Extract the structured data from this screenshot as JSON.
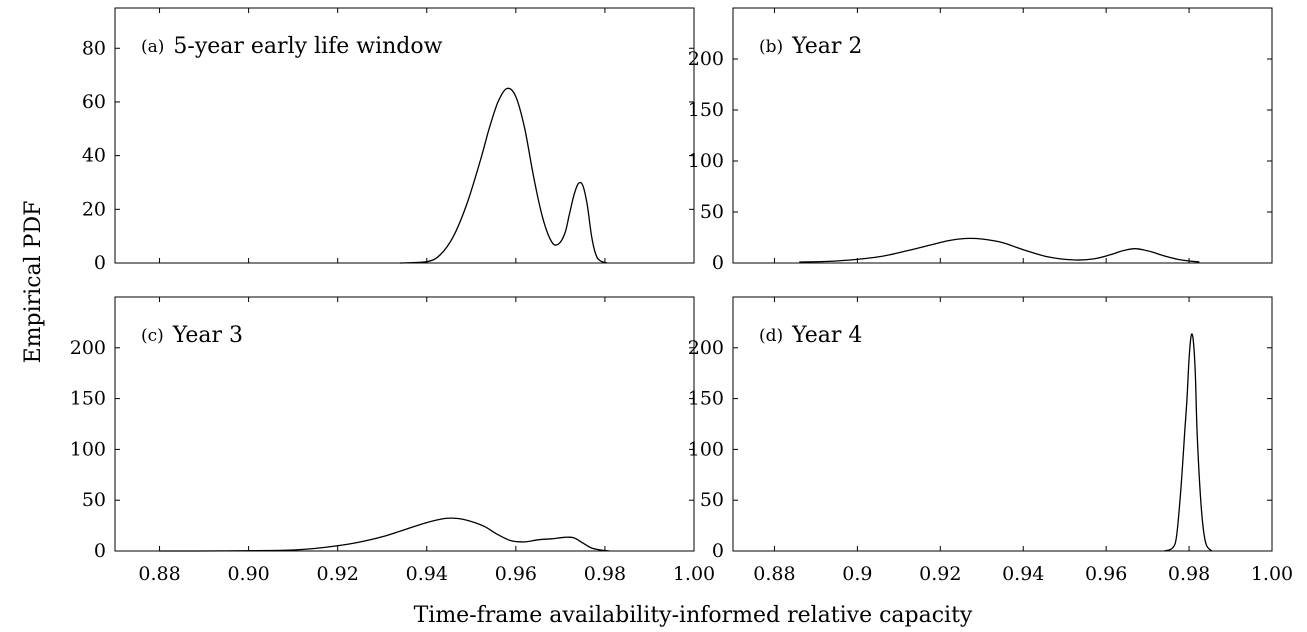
{
  "figure": {
    "ylabel": "Empirical PDF",
    "xlabel": "Time-frame availability-informed relative capacity"
  },
  "chart_data": [
    {
      "type": "line",
      "panel_tag": "(a)",
      "title": "5-year early life window",
      "xlim": [
        0.87,
        1.0
      ],
      "ylim": [
        0,
        95
      ],
      "xticks": [],
      "yticks": [
        0,
        20,
        40,
        60,
        80
      ],
      "series": [
        {
          "x": [
            0.934,
            0.94,
            0.943,
            0.946,
            0.949,
            0.952,
            0.954,
            0.956,
            0.958,
            0.96,
            0.962,
            0.964,
            0.966,
            0.968,
            0.9695,
            0.971,
            0.972,
            0.973,
            0.974,
            0.975,
            0.976,
            0.977,
            0.978,
            0.979,
            0.9805
          ],
          "y": [
            0,
            0.5,
            3,
            10,
            22,
            38,
            50,
            60,
            65,
            62,
            50,
            32,
            17,
            8,
            7,
            11,
            18,
            25,
            29.5,
            29,
            22,
            10,
            3,
            0.8,
            0
          ]
        }
      ]
    },
    {
      "type": "line",
      "panel_tag": "(b)",
      "title": "Year 2",
      "xlim": [
        0.87,
        1.0
      ],
      "ylim": [
        0,
        250
      ],
      "xticks": [],
      "yticks": [
        0,
        50,
        100,
        150,
        200
      ],
      "series": [
        {
          "x": [
            0.886,
            0.895,
            0.905,
            0.912,
            0.918,
            0.922,
            0.926,
            0.93,
            0.935,
            0.94,
            0.946,
            0.952,
            0.957,
            0.961,
            0.964,
            0.967,
            0.97,
            0.974,
            0.978,
            0.9825
          ],
          "y": [
            1,
            2,
            6,
            12,
            18,
            22,
            24,
            23.5,
            20,
            13,
            6,
            3,
            4,
            8,
            12,
            14,
            12,
            7,
            3,
            1
          ]
        }
      ]
    },
    {
      "type": "line",
      "panel_tag": "(c)",
      "title": "Year 3",
      "xlim": [
        0.87,
        1.0
      ],
      "ylim": [
        0,
        250
      ],
      "xticks": [
        "0.88",
        "0.90",
        "0.92",
        "0.94",
        "0.96",
        "0.98",
        "1.00"
      ],
      "xtick_values": [
        0.88,
        0.9,
        0.92,
        0.94,
        0.96,
        0.98,
        1.0
      ],
      "yticks": [
        0,
        50,
        100,
        150,
        200
      ],
      "series": [
        {
          "x": [
            0.88,
            0.895,
            0.905,
            0.912,
            0.918,
            0.924,
            0.93,
            0.935,
            0.94,
            0.944,
            0.947,
            0.95,
            0.953,
            0.956,
            0.959,
            0.962,
            0.965,
            0.968,
            0.971,
            0.973,
            0.975,
            0.977,
            0.979,
            0.981
          ],
          "y": [
            0,
            0.1,
            0.5,
            1.5,
            4,
            8,
            14,
            21,
            28,
            32,
            32,
            29,
            24,
            16,
            10,
            9,
            11,
            12,
            13.5,
            13,
            8,
            3,
            1,
            0
          ]
        }
      ]
    },
    {
      "type": "line",
      "panel_tag": "(d)",
      "title": "Year 4",
      "xlim": [
        0.87,
        1.0
      ],
      "ylim": [
        0,
        250
      ],
      "xticks": [
        "0.88",
        "0.9",
        "0.92",
        "0.94",
        "0.96",
        "0.98",
        "1.00"
      ],
      "xtick_values": [
        0.88,
        0.9,
        0.92,
        0.94,
        0.96,
        0.98,
        1.0
      ],
      "yticks": [
        0,
        50,
        100,
        150,
        200
      ],
      "series": [
        {
          "x": [
            0.974,
            0.976,
            0.977,
            0.978,
            0.979,
            0.9795,
            0.98,
            0.9805,
            0.981,
            0.9815,
            0.982,
            0.983,
            0.984,
            0.9855
          ],
          "y": [
            0,
            3,
            15,
            60,
            120,
            150,
            190,
            212,
            208,
            175,
            110,
            40,
            8,
            0
          ]
        }
      ]
    }
  ]
}
